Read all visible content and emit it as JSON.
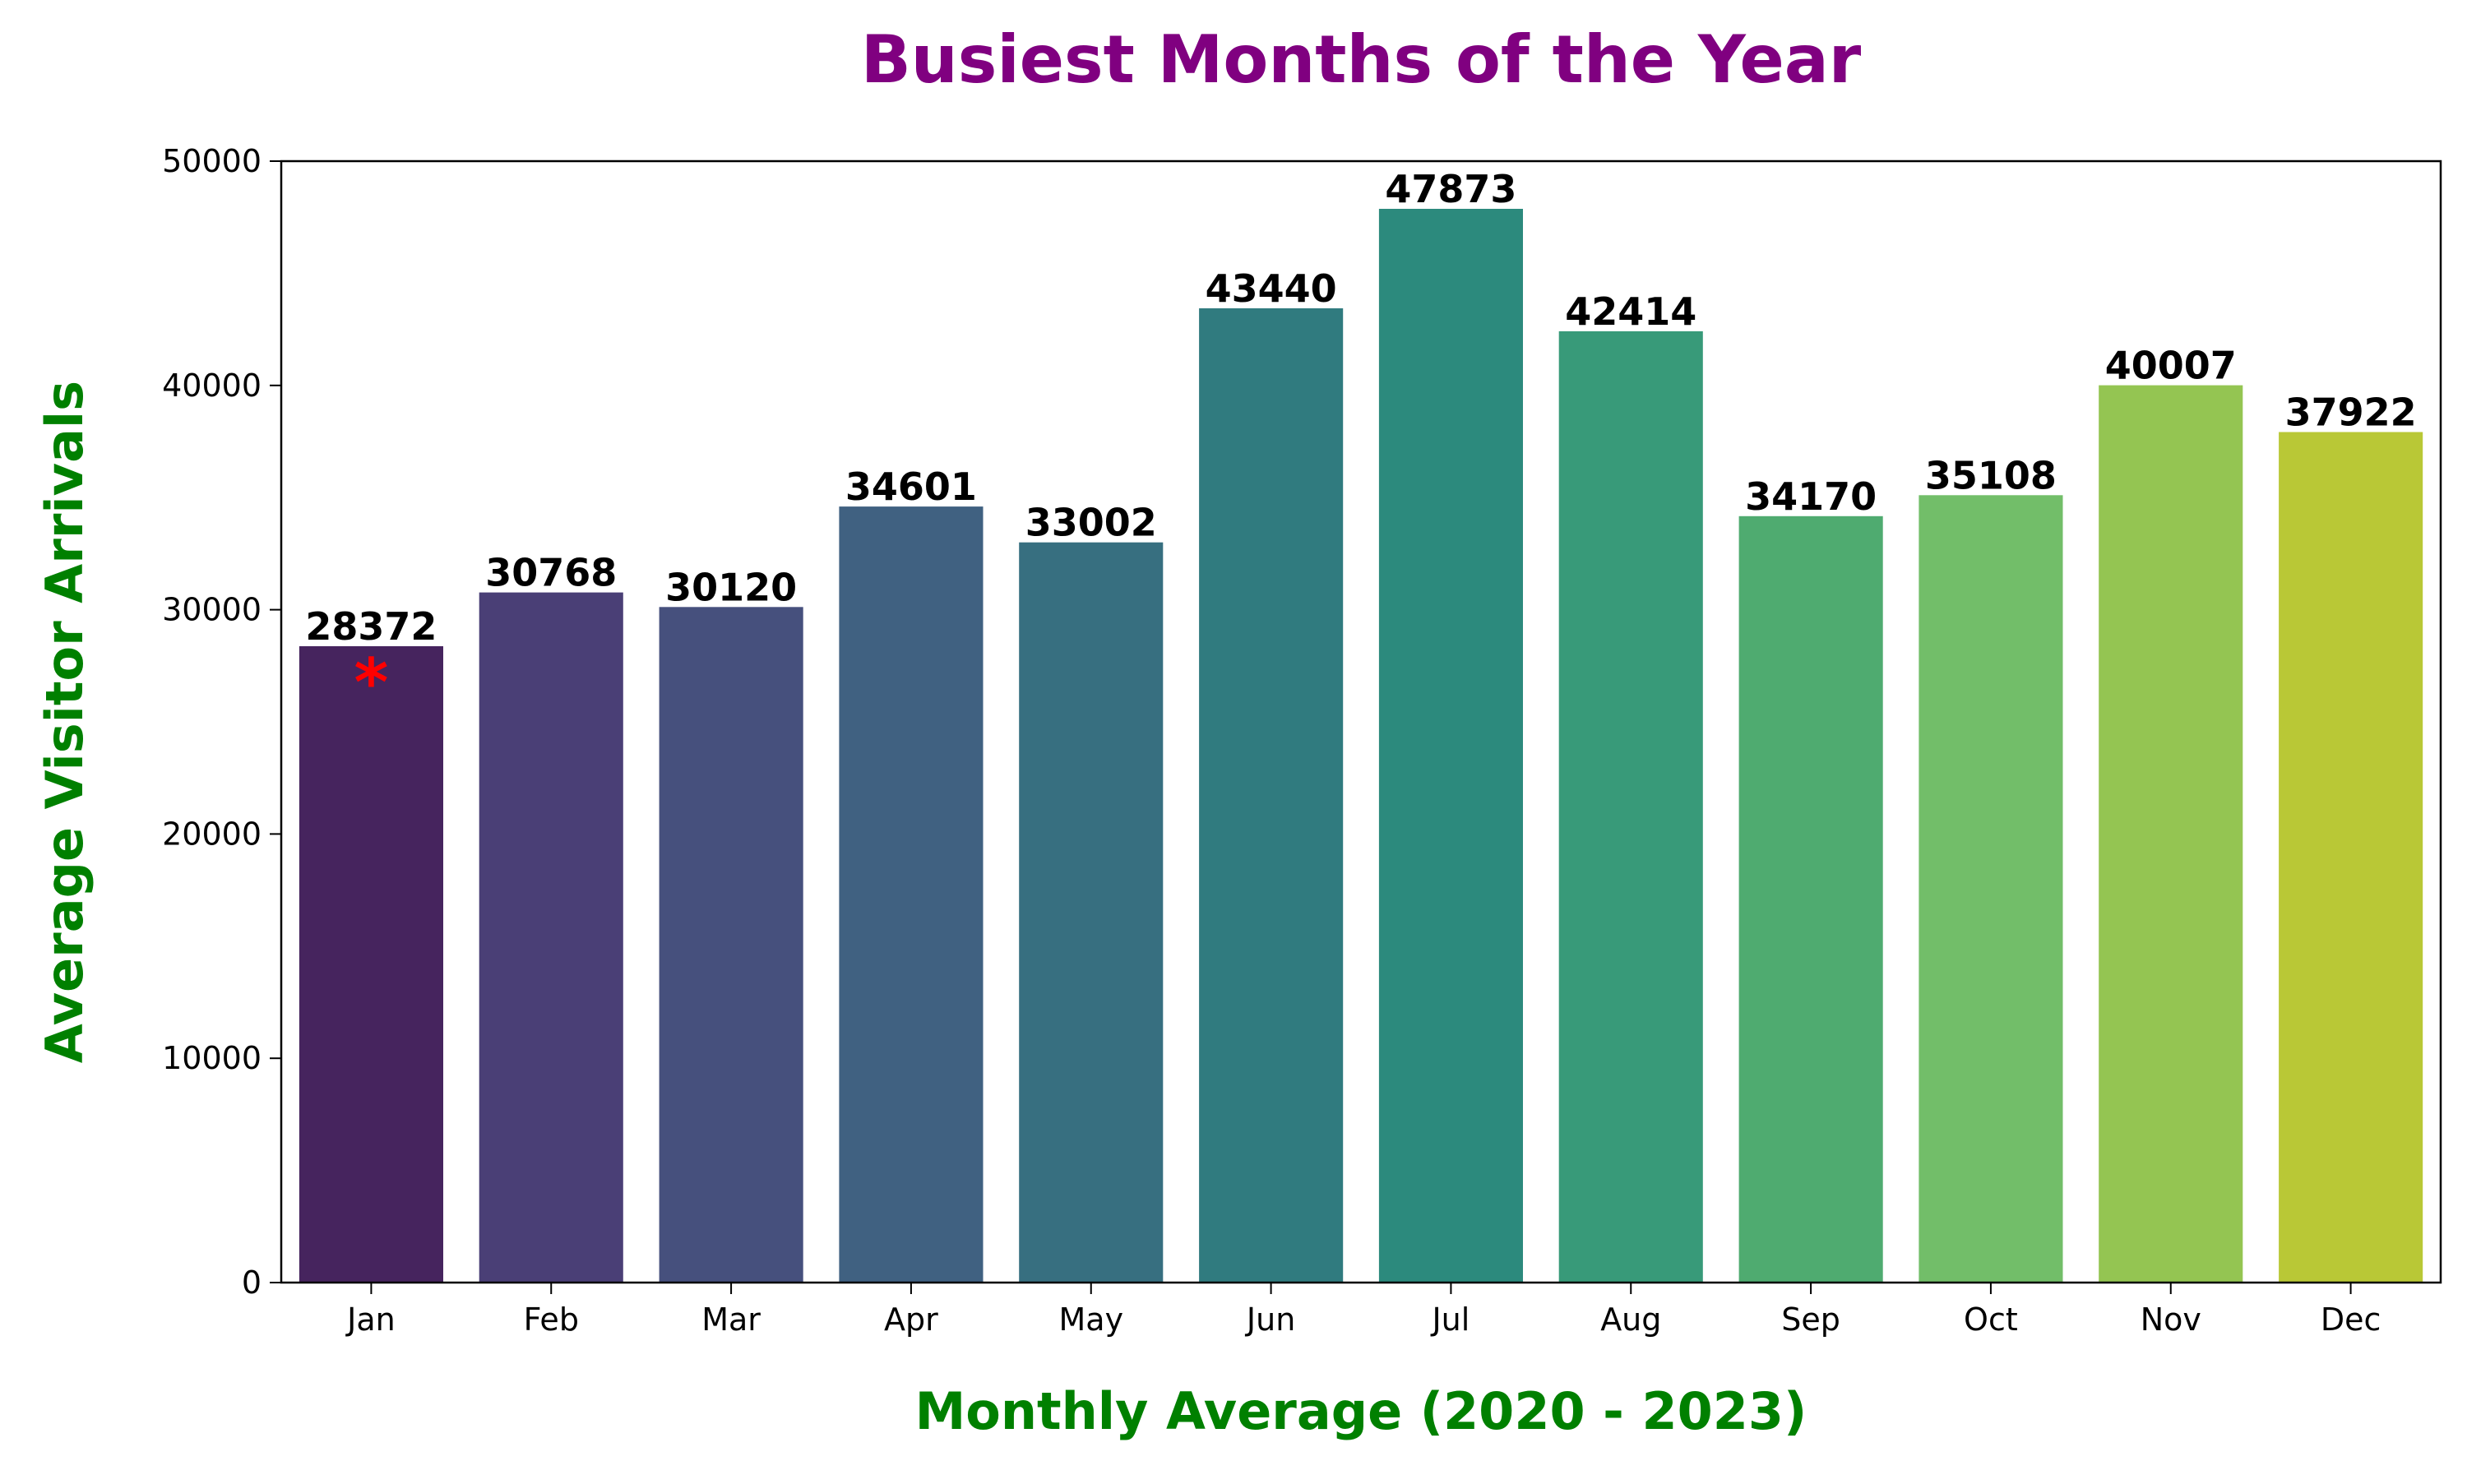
{
  "chart_data": {
    "type": "bar",
    "title": "Busiest Months of the Year",
    "xlabel": "Monthly Average (2020 - 2023)",
    "ylabel": "Average Visitor Arrivals",
    "categories": [
      "Jan",
      "Feb",
      "Mar",
      "Apr",
      "May",
      "Jun",
      "Jul",
      "Aug",
      "Sep",
      "Oct",
      "Nov",
      "Dec"
    ],
    "values": [
      28372,
      30768,
      30120,
      34601,
      33002,
      43440,
      47873,
      42414,
      34170,
      35108,
      40007,
      37922
    ],
    "data_labels": [
      "28372",
      "30768",
      "30120",
      "34601",
      "33002",
      "43440",
      "47873",
      "42414",
      "34170",
      "35108",
      "40007",
      "37922"
    ],
    "ylim": [
      0,
      50000
    ],
    "yticks": [
      0,
      10000,
      20000,
      30000,
      40000,
      50000
    ],
    "ytick_labels": [
      "0",
      "10000",
      "20000",
      "30000",
      "40000",
      "50000"
    ],
    "grid": false,
    "colors": [
      "#46245e",
      "#4a3f76",
      "#46507d",
      "#406181",
      "#376f80",
      "#307b7f",
      "#2c8a7d",
      "#389a79",
      "#4fab70",
      "#72be69",
      "#94c552",
      "#b9c836"
    ],
    "title_color": "#800080",
    "axis_label_color": "#008000",
    "marker": {
      "category": "Jan",
      "symbol": "*",
      "color": "#ff0000"
    }
  }
}
